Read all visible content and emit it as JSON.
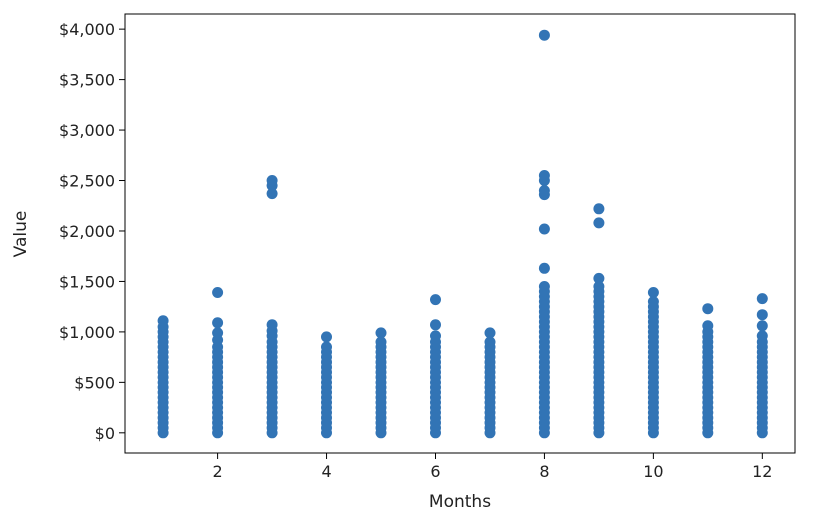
{
  "chart_data": {
    "type": "scatter",
    "title": "",
    "xlabel": "Months",
    "ylabel": "Value",
    "xlim": [
      0.3,
      12.6
    ],
    "ylim": [
      -200,
      4150
    ],
    "xticks": [
      2,
      4,
      6,
      8,
      10,
      12
    ],
    "xtick_labels": [
      "2",
      "4",
      "6",
      "8",
      "10",
      "12"
    ],
    "yticks": [
      0,
      500,
      1000,
      1500,
      2000,
      2500,
      3000,
      3500,
      4000
    ],
    "ytick_labels": [
      "$0",
      "$500",
      "$1,000",
      "$1,500",
      "$2,000",
      "$2,500",
      "$3,000",
      "$3,500",
      "$4,000"
    ],
    "grid": false,
    "legend": "none",
    "marker_color": "#3274b5",
    "series": [
      {
        "points": [
          [
            1,
            0
          ],
          [
            1,
            50
          ],
          [
            1,
            100
          ],
          [
            1,
            150
          ],
          [
            1,
            200
          ],
          [
            1,
            250
          ],
          [
            1,
            300
          ],
          [
            1,
            350
          ],
          [
            1,
            400
          ],
          [
            1,
            450
          ],
          [
            1,
            500
          ],
          [
            1,
            550
          ],
          [
            1,
            600
          ],
          [
            1,
            650
          ],
          [
            1,
            700
          ],
          [
            1,
            750
          ],
          [
            1,
            800
          ],
          [
            1,
            850
          ],
          [
            1,
            900
          ],
          [
            1,
            950
          ],
          [
            1,
            1000
          ],
          [
            1,
            1050
          ],
          [
            1,
            1110
          ],
          [
            2,
            0
          ],
          [
            2,
            50
          ],
          [
            2,
            100
          ],
          [
            2,
            150
          ],
          [
            2,
            200
          ],
          [
            2,
            250
          ],
          [
            2,
            300
          ],
          [
            2,
            350
          ],
          [
            2,
            400
          ],
          [
            2,
            450
          ],
          [
            2,
            500
          ],
          [
            2,
            550
          ],
          [
            2,
            600
          ],
          [
            2,
            650
          ],
          [
            2,
            700
          ],
          [
            2,
            750
          ],
          [
            2,
            800
          ],
          [
            2,
            850
          ],
          [
            2,
            920
          ],
          [
            2,
            990
          ],
          [
            2,
            1090
          ],
          [
            2,
            1390
          ],
          [
            3,
            0
          ],
          [
            3,
            50
          ],
          [
            3,
            100
          ],
          [
            3,
            150
          ],
          [
            3,
            200
          ],
          [
            3,
            250
          ],
          [
            3,
            300
          ],
          [
            3,
            350
          ],
          [
            3,
            400
          ],
          [
            3,
            450
          ],
          [
            3,
            500
          ],
          [
            3,
            550
          ],
          [
            3,
            600
          ],
          [
            3,
            650
          ],
          [
            3,
            700
          ],
          [
            3,
            750
          ],
          [
            3,
            800
          ],
          [
            3,
            850
          ],
          [
            3,
            900
          ],
          [
            3,
            960
          ],
          [
            3,
            1010
          ],
          [
            3,
            1070
          ],
          [
            3,
            2370
          ],
          [
            3,
            2450
          ],
          [
            3,
            2500
          ],
          [
            4,
            0
          ],
          [
            4,
            50
          ],
          [
            4,
            100
          ],
          [
            4,
            150
          ],
          [
            4,
            200
          ],
          [
            4,
            250
          ],
          [
            4,
            300
          ],
          [
            4,
            350
          ],
          [
            4,
            400
          ],
          [
            4,
            450
          ],
          [
            4,
            500
          ],
          [
            4,
            550
          ],
          [
            4,
            600
          ],
          [
            4,
            650
          ],
          [
            4,
            700
          ],
          [
            4,
            750
          ],
          [
            4,
            800
          ],
          [
            4,
            850
          ],
          [
            4,
            950
          ],
          [
            5,
            0
          ],
          [
            5,
            50
          ],
          [
            5,
            100
          ],
          [
            5,
            150
          ],
          [
            5,
            200
          ],
          [
            5,
            250
          ],
          [
            5,
            300
          ],
          [
            5,
            350
          ],
          [
            5,
            400
          ],
          [
            5,
            450
          ],
          [
            5,
            500
          ],
          [
            5,
            550
          ],
          [
            5,
            600
          ],
          [
            5,
            650
          ],
          [
            5,
            700
          ],
          [
            5,
            750
          ],
          [
            5,
            800
          ],
          [
            5,
            850
          ],
          [
            5,
            900
          ],
          [
            5,
            990
          ],
          [
            6,
            0
          ],
          [
            6,
            50
          ],
          [
            6,
            100
          ],
          [
            6,
            150
          ],
          [
            6,
            200
          ],
          [
            6,
            250
          ],
          [
            6,
            300
          ],
          [
            6,
            350
          ],
          [
            6,
            400
          ],
          [
            6,
            450
          ],
          [
            6,
            500
          ],
          [
            6,
            550
          ],
          [
            6,
            600
          ],
          [
            6,
            650
          ],
          [
            6,
            700
          ],
          [
            6,
            750
          ],
          [
            6,
            800
          ],
          [
            6,
            850
          ],
          [
            6,
            900
          ],
          [
            6,
            960
          ],
          [
            6,
            1070
          ],
          [
            6,
            1320
          ],
          [
            7,
            0
          ],
          [
            7,
            50
          ],
          [
            7,
            100
          ],
          [
            7,
            150
          ],
          [
            7,
            200
          ],
          [
            7,
            250
          ],
          [
            7,
            300
          ],
          [
            7,
            350
          ],
          [
            7,
            400
          ],
          [
            7,
            450
          ],
          [
            7,
            500
          ],
          [
            7,
            550
          ],
          [
            7,
            600
          ],
          [
            7,
            650
          ],
          [
            7,
            700
          ],
          [
            7,
            750
          ],
          [
            7,
            800
          ],
          [
            7,
            850
          ],
          [
            7,
            900
          ],
          [
            7,
            990
          ],
          [
            8,
            0
          ],
          [
            8,
            50
          ],
          [
            8,
            100
          ],
          [
            8,
            150
          ],
          [
            8,
            200
          ],
          [
            8,
            250
          ],
          [
            8,
            300
          ],
          [
            8,
            350
          ],
          [
            8,
            400
          ],
          [
            8,
            450
          ],
          [
            8,
            500
          ],
          [
            8,
            550
          ],
          [
            8,
            600
          ],
          [
            8,
            650
          ],
          [
            8,
            700
          ],
          [
            8,
            750
          ],
          [
            8,
            800
          ],
          [
            8,
            850
          ],
          [
            8,
            900
          ],
          [
            8,
            950
          ],
          [
            8,
            1000
          ],
          [
            8,
            1050
          ],
          [
            8,
            1100
          ],
          [
            8,
            1150
          ],
          [
            8,
            1200
          ],
          [
            8,
            1250
          ],
          [
            8,
            1300
          ],
          [
            8,
            1350
          ],
          [
            8,
            1400
          ],
          [
            8,
            1450
          ],
          [
            8,
            1630
          ],
          [
            8,
            2020
          ],
          [
            8,
            2360
          ],
          [
            8,
            2400
          ],
          [
            8,
            2500
          ],
          [
            8,
            2550
          ],
          [
            8,
            3940
          ],
          [
            9,
            0
          ],
          [
            9,
            50
          ],
          [
            9,
            100
          ],
          [
            9,
            150
          ],
          [
            9,
            200
          ],
          [
            9,
            250
          ],
          [
            9,
            300
          ],
          [
            9,
            350
          ],
          [
            9,
            400
          ],
          [
            9,
            450
          ],
          [
            9,
            500
          ],
          [
            9,
            550
          ],
          [
            9,
            600
          ],
          [
            9,
            650
          ],
          [
            9,
            700
          ],
          [
            9,
            750
          ],
          [
            9,
            800
          ],
          [
            9,
            850
          ],
          [
            9,
            900
          ],
          [
            9,
            950
          ],
          [
            9,
            1000
          ],
          [
            9,
            1050
          ],
          [
            9,
            1100
          ],
          [
            9,
            1150
          ],
          [
            9,
            1200
          ],
          [
            9,
            1250
          ],
          [
            9,
            1300
          ],
          [
            9,
            1350
          ],
          [
            9,
            1400
          ],
          [
            9,
            1450
          ],
          [
            9,
            1530
          ],
          [
            9,
            2080
          ],
          [
            9,
            2220
          ],
          [
            10,
            0
          ],
          [
            10,
            50
          ],
          [
            10,
            100
          ],
          [
            10,
            150
          ],
          [
            10,
            200
          ],
          [
            10,
            250
          ],
          [
            10,
            300
          ],
          [
            10,
            350
          ],
          [
            10,
            400
          ],
          [
            10,
            450
          ],
          [
            10,
            500
          ],
          [
            10,
            550
          ],
          [
            10,
            600
          ],
          [
            10,
            650
          ],
          [
            10,
            700
          ],
          [
            10,
            750
          ],
          [
            10,
            800
          ],
          [
            10,
            850
          ],
          [
            10,
            900
          ],
          [
            10,
            950
          ],
          [
            10,
            1000
          ],
          [
            10,
            1050
          ],
          [
            10,
            1100
          ],
          [
            10,
            1150
          ],
          [
            10,
            1200
          ],
          [
            10,
            1250
          ],
          [
            10,
            1300
          ],
          [
            10,
            1390
          ],
          [
            11,
            0
          ],
          [
            11,
            50
          ],
          [
            11,
            100
          ],
          [
            11,
            150
          ],
          [
            11,
            200
          ],
          [
            11,
            250
          ],
          [
            11,
            300
          ],
          [
            11,
            350
          ],
          [
            11,
            400
          ],
          [
            11,
            450
          ],
          [
            11,
            500
          ],
          [
            11,
            550
          ],
          [
            11,
            600
          ],
          [
            11,
            650
          ],
          [
            11,
            700
          ],
          [
            11,
            750
          ],
          [
            11,
            800
          ],
          [
            11,
            850
          ],
          [
            11,
            900
          ],
          [
            11,
            950
          ],
          [
            11,
            1000
          ],
          [
            11,
            1060
          ],
          [
            11,
            1230
          ],
          [
            12,
            0
          ],
          [
            12,
            50
          ],
          [
            12,
            100
          ],
          [
            12,
            150
          ],
          [
            12,
            200
          ],
          [
            12,
            250
          ],
          [
            12,
            300
          ],
          [
            12,
            350
          ],
          [
            12,
            400
          ],
          [
            12,
            450
          ],
          [
            12,
            500
          ],
          [
            12,
            550
          ],
          [
            12,
            600
          ],
          [
            12,
            650
          ],
          [
            12,
            700
          ],
          [
            12,
            750
          ],
          [
            12,
            800
          ],
          [
            12,
            850
          ],
          [
            12,
            900
          ],
          [
            12,
            960
          ],
          [
            12,
            1060
          ],
          [
            12,
            1170
          ],
          [
            12,
            1330
          ]
        ]
      }
    ]
  }
}
